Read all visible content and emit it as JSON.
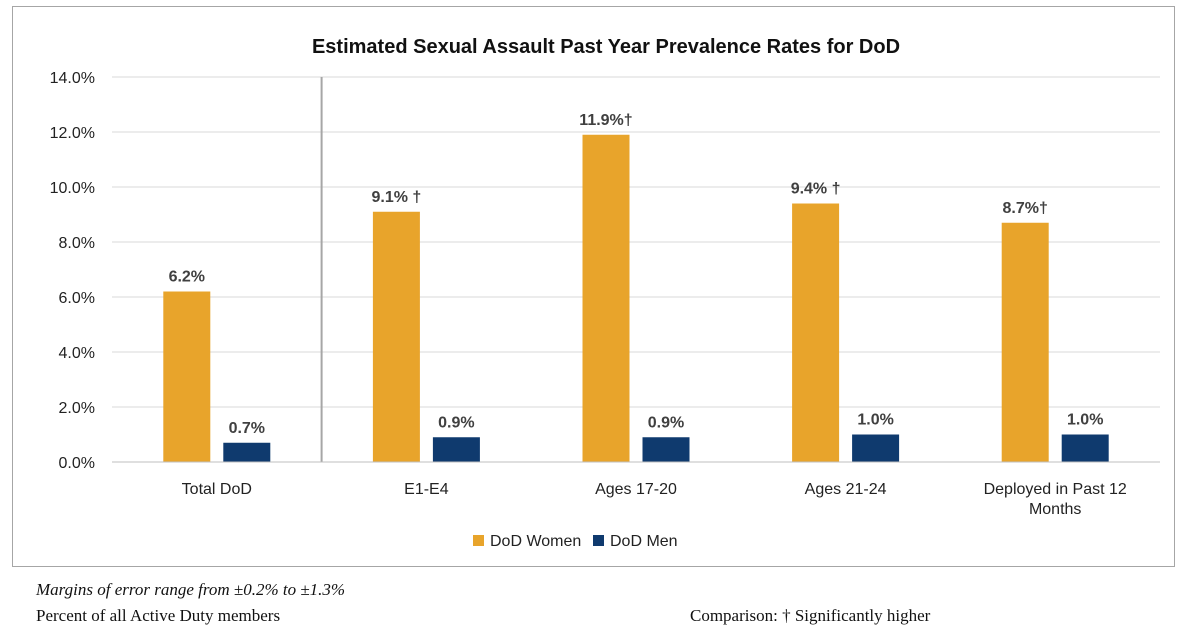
{
  "chart_data": {
    "type": "bar",
    "title": "Estimated Sexual Assault Past Year Prevalence Rates for DoD",
    "categories": [
      "Total DoD",
      "E1-E4",
      "Ages 17-20",
      "Ages 21-24",
      "Deployed in Past 12 Months"
    ],
    "category_lines": [
      [
        "Total DoD"
      ],
      [
        "E1-E4"
      ],
      [
        "Ages 17-20"
      ],
      [
        "Ages 21-24"
      ],
      [
        "Deployed in Past 12",
        "Months"
      ]
    ],
    "series": [
      {
        "name": "DoD Women",
        "color": "#e8a42b",
        "values": [
          6.2,
          9.1,
          11.9,
          9.4,
          8.7
        ],
        "labels": [
          "6.2%",
          "9.1% †",
          "11.9%†",
          "9.4% †",
          "8.7%†"
        ]
      },
      {
        "name": "DoD Men",
        "color": "#0f3a6e",
        "values": [
          0.7,
          0.9,
          0.9,
          1.0,
          1.0
        ],
        "labels": [
          "0.7%",
          "0.9%",
          "0.9%",
          "1.0%",
          "1.0%"
        ]
      }
    ],
    "ylim": [
      0,
      14
    ],
    "yticks": [
      "0.0%",
      "2.0%",
      "4.0%",
      "6.0%",
      "8.0%",
      "10.0%",
      "12.0%",
      "14.0%"
    ],
    "grid": true,
    "legend_position": "bottom"
  },
  "notes": {
    "margin_of_error": "Margins of error range from ±0.2% to ±1.3%",
    "population": "Percent of all Active Duty members",
    "comparison": "Comparison: † Significantly  higher"
  }
}
